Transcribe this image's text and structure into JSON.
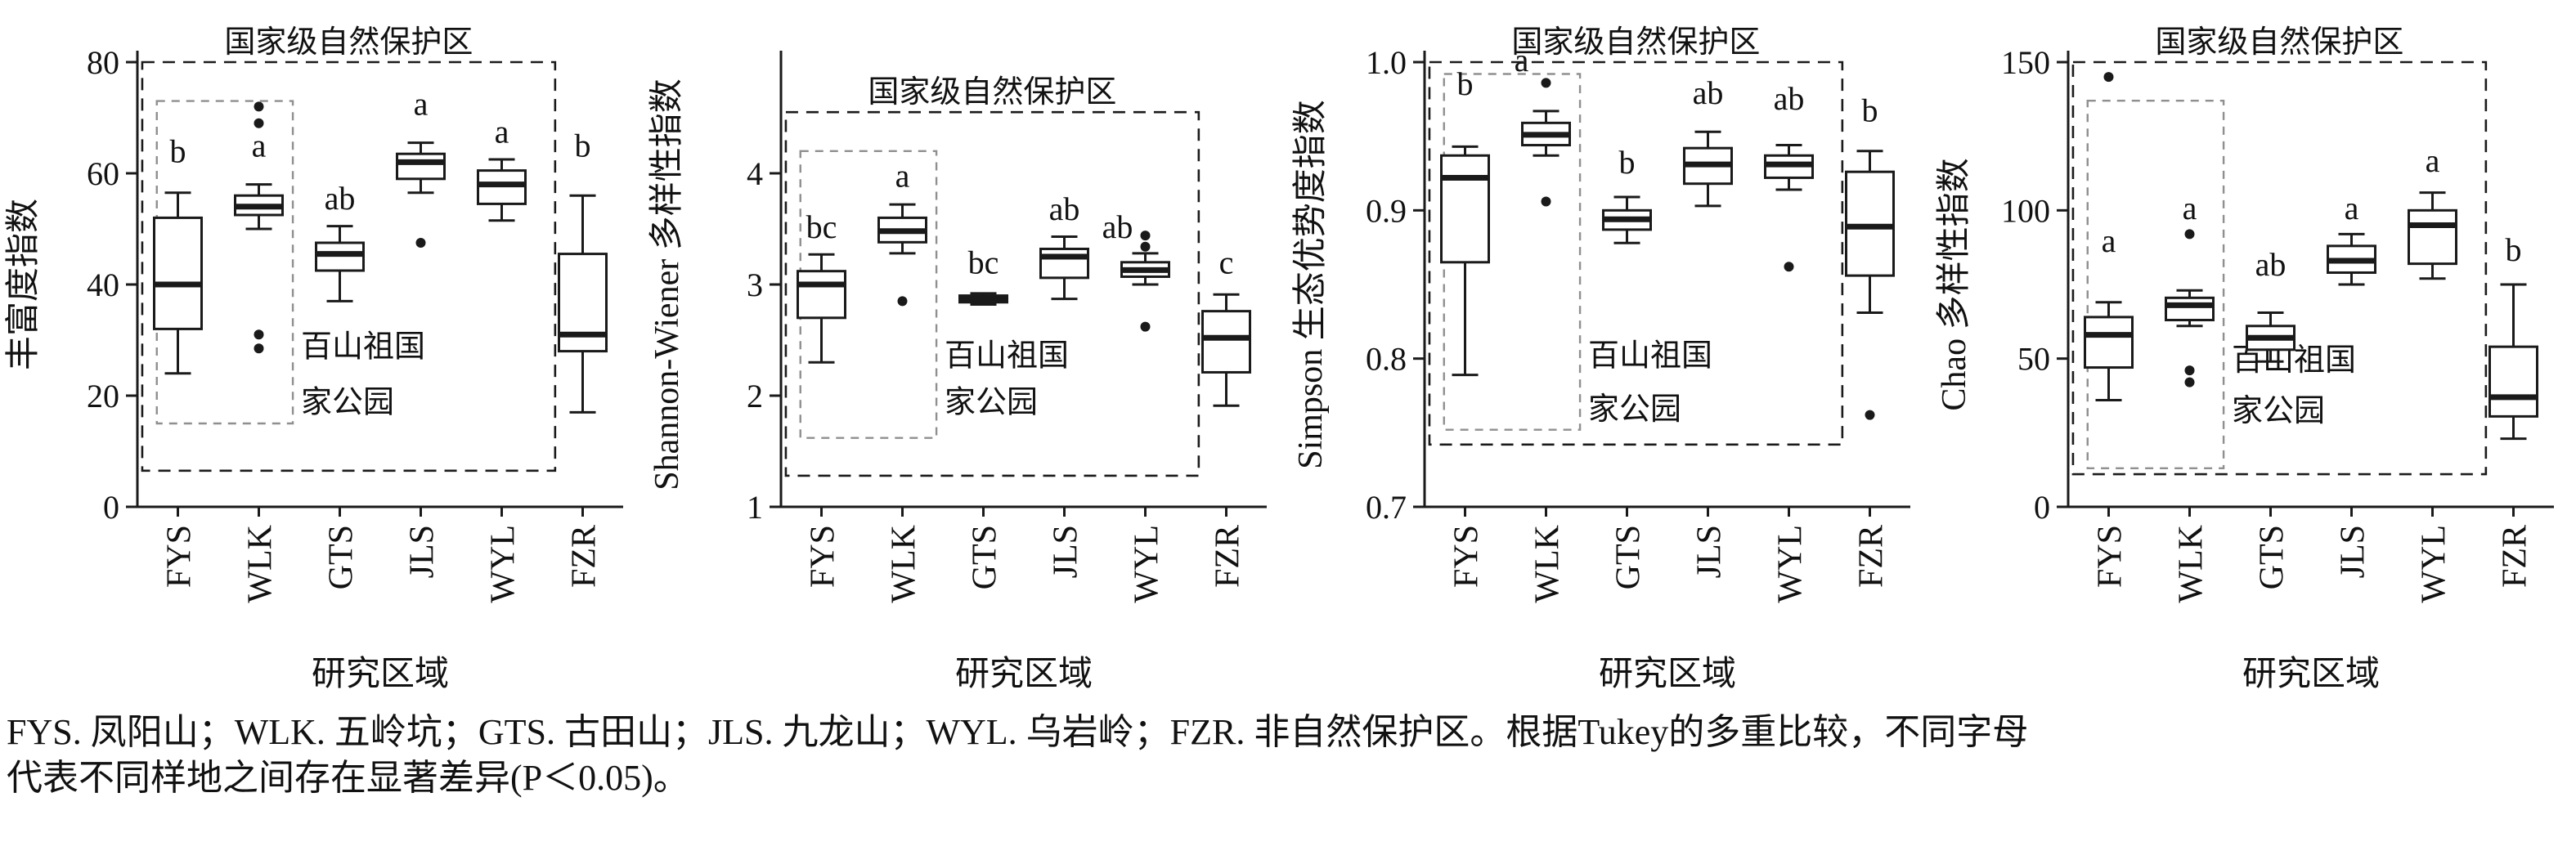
{
  "figure": {
    "caption_line1": "FYS. 凤阳山；WLK. 五岭坑；GTS. 古田山；JLS. 九龙山；WYL. 乌岩岭；FZR. 非自然保护区。根据Tukey的多重比较，不同字母",
    "caption_line2": "代表不同样地之间存在显著差异(P＜0.05)。"
  },
  "colors": {
    "ink": "#1a1a1a",
    "inner_dash": "#8f8f8f",
    "background": "#ffffff"
  },
  "chart_data": [
    {
      "type": "boxplot",
      "ylabel": "丰富度指数",
      "xlabel": "研究区域",
      "ylim": [
        0,
        80
      ],
      "yticks": [
        0,
        20,
        40,
        60,
        80
      ],
      "ytick_labels": [
        "0",
        "20",
        "40",
        "60",
        "80"
      ],
      "categories": [
        "FYS",
        "WLK",
        "GTS",
        "JLS",
        "WYL",
        "FZR"
      ],
      "letters": [
        "b",
        "a",
        "ab",
        "a",
        "a",
        "b"
      ],
      "letter_y": [
        62,
        63,
        53.5,
        70.5,
        65.5,
        63
      ],
      "boxes": [
        {
          "low": 24,
          "q1": 32,
          "median": 40,
          "q3": 52,
          "high": 56.5,
          "outliers": []
        },
        {
          "low": 50,
          "q1": 52.5,
          "median": 54,
          "q3": 56,
          "high": 58,
          "outliers": [
            72,
            69,
            31,
            28.5
          ]
        },
        {
          "low": 37,
          "q1": 42.5,
          "median": 45.5,
          "q3": 47.5,
          "high": 50.5,
          "outliers": []
        },
        {
          "low": 56.5,
          "q1": 59,
          "median": 62,
          "q3": 63.5,
          "high": 65.5,
          "outliers": [
            47.5
          ]
        },
        {
          "low": 51.5,
          "q1": 54.5,
          "median": 58,
          "q3": 60.5,
          "high": 62.5,
          "outliers": []
        },
        {
          "low": 17,
          "q1": 28,
          "median": 31,
          "q3": 45.5,
          "high": 56,
          "outliers": []
        }
      ],
      "outer_rect": {
        "label": "国家级自然保护区",
        "x0": -0.44,
        "x1": 4.66,
        "y_top": 80,
        "y_bottom": 6.5
      },
      "inner_rect": {
        "x0": -0.26,
        "x1": 1.42,
        "y_top": 73,
        "y_bottom": 15
      },
      "inner_label": {
        "lines": [
          "百山祖国",
          "家公园"
        ],
        "x": 1.52,
        "y1": 27,
        "y2": 17
      }
    },
    {
      "type": "boxplot",
      "ylabel": "Shannon-Wiener 多样性指数",
      "xlabel": "研究区域",
      "ylim": [
        1,
        5
      ],
      "yticks": [
        1,
        2,
        3,
        4
      ],
      "ytick_labels": [
        "1",
        "2",
        "3",
        "4"
      ],
      "categories": [
        "FYS",
        "WLK",
        "GTS",
        "JLS",
        "WYL",
        "FZR"
      ],
      "letters": [
        "bc",
        "a",
        "bc",
        "ab",
        "ab",
        "c"
      ],
      "letter_y": [
        3.42,
        3.88,
        3.1,
        3.58,
        3.42,
        3.1
      ],
      "letter_dx": [
        0,
        0,
        0,
        0,
        -34,
        0
      ],
      "boxes": [
        {
          "low": 2.3,
          "q1": 2.7,
          "median": 3.0,
          "q3": 3.12,
          "high": 3.27,
          "outliers": []
        },
        {
          "low": 3.28,
          "q1": 3.38,
          "median": 3.48,
          "q3": 3.6,
          "high": 3.72,
          "outliers": [
            2.85
          ]
        },
        {
          "low": 2.82,
          "q1": 2.84,
          "median": 2.87,
          "q3": 2.9,
          "high": 2.92,
          "outliers": []
        },
        {
          "low": 2.87,
          "q1": 3.06,
          "median": 3.25,
          "q3": 3.32,
          "high": 3.43,
          "outliers": []
        },
        {
          "low": 3.0,
          "q1": 3.07,
          "median": 3.13,
          "q3": 3.2,
          "high": 3.28,
          "outliers": [
            3.44,
            3.34,
            2.62
          ]
        },
        {
          "low": 1.91,
          "q1": 2.21,
          "median": 2.52,
          "q3": 2.76,
          "high": 2.91,
          "outliers": []
        }
      ],
      "outer_rect": {
        "label": "国家级自然保护区",
        "x0": -0.44,
        "x1": 4.66,
        "y_top": 4.55,
        "y_bottom": 1.28
      },
      "inner_rect": {
        "x0": -0.26,
        "x1": 1.42,
        "y_top": 4.2,
        "y_bottom": 1.62
      },
      "inner_label": {
        "lines": [
          "百山祖国",
          "家公园"
        ],
        "x": 1.52,
        "y1": 2.27,
        "y2": 1.85
      }
    },
    {
      "type": "boxplot",
      "ylabel": "Simpson 生态优势度指数",
      "xlabel": "研究区域",
      "ylim": [
        0.7,
        1.0
      ],
      "yticks": [
        0.7,
        0.8,
        0.9,
        1.0
      ],
      "ytick_labels": [
        "0.7",
        "0.8",
        "0.9",
        "1.0"
      ],
      "categories": [
        "FYS",
        "WLK",
        "GTS",
        "JLS",
        "WYL",
        "FZR"
      ],
      "letters": [
        "b",
        "a",
        "b",
        "ab",
        "ab",
        "b"
      ],
      "letter_y": [
        0.978,
        0.994,
        0.925,
        0.972,
        0.968,
        0.96
      ],
      "letter_dx": [
        0,
        -30,
        0,
        0,
        0,
        0
      ],
      "boxes": [
        {
          "low": 0.789,
          "q1": 0.865,
          "median": 0.922,
          "q3": 0.937,
          "high": 0.943,
          "outliers": []
        },
        {
          "low": 0.937,
          "q1": 0.944,
          "median": 0.951,
          "q3": 0.959,
          "high": 0.967,
          "outliers": [
            0.986,
            0.906
          ]
        },
        {
          "low": 0.878,
          "q1": 0.887,
          "median": 0.894,
          "q3": 0.9,
          "high": 0.909,
          "outliers": []
        },
        {
          "low": 0.903,
          "q1": 0.918,
          "median": 0.931,
          "q3": 0.942,
          "high": 0.953,
          "outliers": []
        },
        {
          "low": 0.914,
          "q1": 0.922,
          "median": 0.931,
          "q3": 0.937,
          "high": 0.944,
          "outliers": [
            0.862
          ]
        },
        {
          "low": 0.831,
          "q1": 0.856,
          "median": 0.889,
          "q3": 0.926,
          "high": 0.94,
          "outliers": [
            0.762
          ]
        }
      ],
      "outer_rect": {
        "label": "国家级自然保护区",
        "x0": -0.44,
        "x1": 4.66,
        "y_top": 1.0,
        "y_bottom": 0.742
      },
      "inner_rect": {
        "x0": -0.26,
        "x1": 1.42,
        "y_top": 0.992,
        "y_bottom": 0.752
      },
      "inner_label": {
        "lines": [
          "百山祖国",
          "家公园"
        ],
        "x": 1.52,
        "y1": 0.795,
        "y2": 0.759
      }
    },
    {
      "type": "boxplot",
      "ylabel": "Chao 多样性指数",
      "xlabel": "研究区域",
      "ylim": [
        0,
        150
      ],
      "yticks": [
        0,
        50,
        100,
        150
      ],
      "ytick_labels": [
        "0",
        "50",
        "100",
        "150"
      ],
      "categories": [
        "FYS",
        "WLK",
        "GTS",
        "JLS",
        "WYL",
        "FZR"
      ],
      "letters": [
        "a",
        "a",
        "ab",
        "a",
        "a",
        "b"
      ],
      "letter_y": [
        86,
        97,
        78,
        97,
        113,
        83
      ],
      "boxes": [
        {
          "low": 36,
          "q1": 47,
          "median": 58,
          "q3": 64,
          "high": 69,
          "outliers": [
            145
          ]
        },
        {
          "low": 61,
          "q1": 63,
          "median": 68,
          "q3": 70.5,
          "high": 73,
          "outliers": [
            92,
            46,
            42
          ]
        },
        {
          "low": 49,
          "q1": 53,
          "median": 57,
          "q3": 61,
          "high": 65.5,
          "outliers": []
        },
        {
          "low": 75,
          "q1": 79,
          "median": 83,
          "q3": 88,
          "high": 92,
          "outliers": []
        },
        {
          "low": 77,
          "q1": 82,
          "median": 95,
          "q3": 100,
          "high": 106,
          "outliers": []
        },
        {
          "low": 23,
          "q1": 30.5,
          "median": 37,
          "q3": 54,
          "high": 75,
          "outliers": []
        }
      ],
      "outer_rect": {
        "label": "国家级自然保护区",
        "x0": -0.44,
        "x1": 4.66,
        "y_top": 150,
        "y_bottom": 11
      },
      "inner_rect": {
        "x0": -0.26,
        "x1": 1.42,
        "y_top": 137,
        "y_bottom": 13
      },
      "inner_label": {
        "lines": [
          "百山祖国",
          "家公园"
        ],
        "x": 1.52,
        "y1": 46,
        "y2": 29
      }
    }
  ]
}
